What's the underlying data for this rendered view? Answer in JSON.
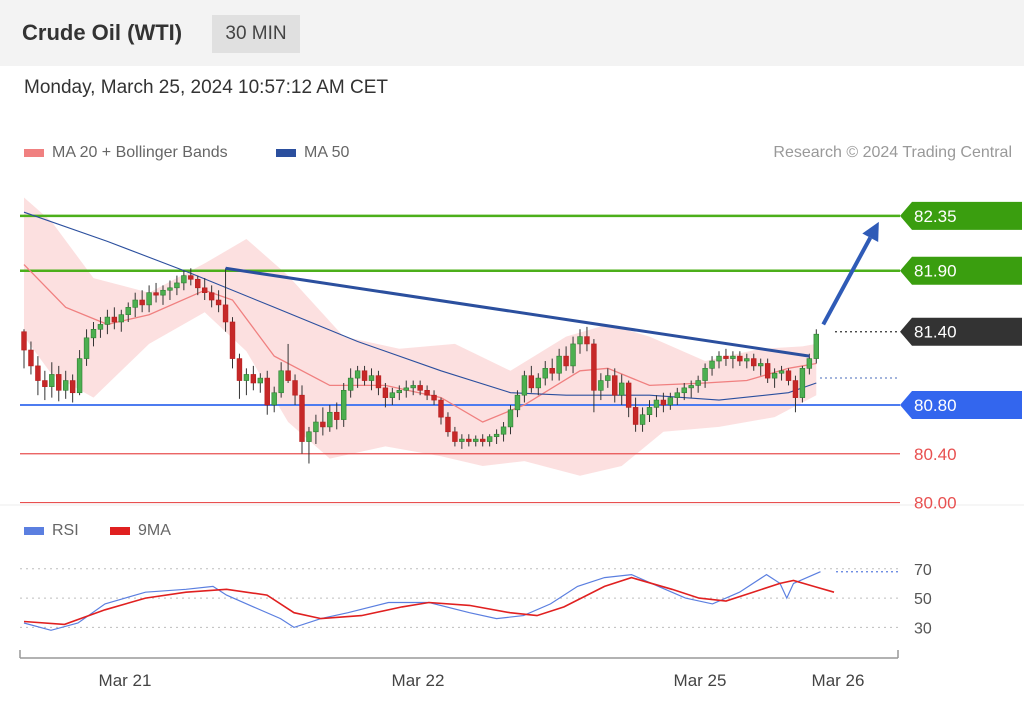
{
  "header": {
    "title": "Crude Oil (WTI)",
    "timeframe": "30 MIN"
  },
  "timestamp": "Monday, March 25, 2024 10:57:12 AM CET",
  "credit": "Research © 2024 Trading Central",
  "legend": {
    "ma20": {
      "label": "MA 20 + Bollinger Bands",
      "color": "#f08080"
    },
    "ma50": {
      "label": "MA 50",
      "color": "#2b4f9e"
    }
  },
  "rsi_legend": {
    "rsi": {
      "label": "RSI",
      "color": "#5b7fe0"
    },
    "ma9": {
      "label": "9MA",
      "color": "#e02020"
    }
  },
  "chart_data": [
    {
      "type": "candlestick",
      "ylim": [
        79.98,
        82.66
      ],
      "x_ticks": [
        "Mar 21",
        "Mar 22",
        "Mar 25",
        "Mar 26"
      ],
      "levels": [
        {
          "value": 82.35,
          "label": "82.35",
          "color": "#4caf1a",
          "style": "resistance",
          "label_fill": "#3a9e0f"
        },
        {
          "value": 81.9,
          "label": "81.90",
          "color": "#4caf1a",
          "style": "resistance",
          "label_fill": "#3a9e0f"
        },
        {
          "value": 81.4,
          "label": "81.40",
          "color": "#333333",
          "style": "current",
          "label_fill": "#333333"
        },
        {
          "value": 80.8,
          "label": "80.80",
          "color": "#4d7cf0",
          "style": "pivot",
          "label_fill": "#3366ee"
        },
        {
          "value": 80.4,
          "label": "80.40",
          "color": "#e85050",
          "style": "support",
          "label_fill": "none"
        },
        {
          "value": 80.0,
          "label": "80.00",
          "color": "#e85050",
          "style": "support",
          "label_fill": "none"
        }
      ],
      "candles": [
        [
          81.4,
          81.42,
          81.1,
          81.25
        ],
        [
          81.25,
          81.32,
          81.05,
          81.12
        ],
        [
          81.12,
          81.2,
          80.88,
          81.0
        ],
        [
          81.0,
          81.08,
          80.84,
          80.95
        ],
        [
          80.95,
          81.15,
          80.86,
          81.05
        ],
        [
          81.05,
          81.12,
          80.83,
          80.92
        ],
        [
          80.92,
          81.08,
          80.85,
          81.0
        ],
        [
          81.0,
          81.05,
          80.82,
          80.9
        ],
        [
          80.9,
          81.25,
          80.88,
          81.18
        ],
        [
          81.18,
          81.42,
          81.12,
          81.35
        ],
        [
          81.35,
          81.48,
          81.28,
          81.42
        ],
        [
          81.42,
          81.52,
          81.35,
          81.46
        ],
        [
          81.46,
          81.58,
          81.38,
          81.52
        ],
        [
          81.52,
          81.6,
          81.42,
          81.48
        ],
        [
          81.48,
          81.58,
          81.4,
          81.54
        ],
        [
          81.54,
          81.64,
          81.48,
          81.6
        ],
        [
          81.6,
          81.72,
          81.52,
          81.66
        ],
        [
          81.66,
          81.74,
          81.56,
          81.62
        ],
        [
          81.62,
          81.78,
          81.56,
          81.72
        ],
        [
          81.72,
          81.8,
          81.64,
          81.7
        ],
        [
          81.7,
          81.78,
          81.62,
          81.74
        ],
        [
          81.74,
          81.82,
          81.66,
          81.76
        ],
        [
          81.76,
          81.86,
          81.7,
          81.8
        ],
        [
          81.8,
          81.9,
          81.74,
          81.86
        ],
        [
          81.86,
          81.92,
          81.78,
          81.83
        ],
        [
          81.83,
          81.86,
          81.7,
          81.76
        ],
        [
          81.76,
          81.84,
          81.66,
          81.72
        ],
        [
          81.72,
          81.78,
          81.6,
          81.66
        ],
        [
          81.66,
          81.74,
          81.56,
          81.62
        ],
        [
          81.62,
          81.92,
          81.4,
          81.48
        ],
        [
          81.48,
          81.52,
          81.1,
          81.18
        ],
        [
          81.18,
          81.22,
          80.85,
          81.0
        ],
        [
          81.0,
          81.1,
          80.88,
          81.05
        ],
        [
          81.05,
          81.12,
          80.92,
          80.98
        ],
        [
          80.98,
          81.06,
          80.9,
          81.02
        ],
        [
          81.02,
          81.08,
          80.72,
          80.8
        ],
        [
          80.8,
          80.95,
          80.74,
          80.9
        ],
        [
          80.9,
          81.15,
          80.86,
          81.08
        ],
        [
          81.08,
          81.3,
          80.98,
          81.0
        ],
        [
          81.0,
          81.05,
          80.8,
          80.88
        ],
        [
          80.88,
          80.96,
          80.4,
          80.5
        ],
        [
          80.5,
          80.62,
          80.32,
          80.58
        ],
        [
          80.58,
          80.72,
          80.48,
          80.66
        ],
        [
          80.66,
          80.78,
          80.55,
          80.62
        ],
        [
          80.62,
          80.8,
          80.58,
          80.74
        ],
        [
          80.74,
          80.82,
          80.6,
          80.68
        ],
        [
          80.68,
          80.98,
          80.62,
          80.92
        ],
        [
          80.92,
          81.1,
          80.86,
          81.02
        ],
        [
          81.02,
          81.12,
          80.94,
          81.08
        ],
        [
          81.08,
          81.12,
          80.96,
          81.0
        ],
        [
          81.0,
          81.1,
          80.92,
          81.04
        ],
        [
          81.04,
          81.08,
          80.88,
          80.94
        ],
        [
          80.94,
          80.98,
          80.78,
          80.86
        ],
        [
          80.86,
          80.94,
          80.8,
          80.9
        ],
        [
          80.9,
          80.96,
          80.84,
          80.92
        ],
        [
          80.92,
          81.0,
          80.86,
          80.94
        ],
        [
          80.94,
          81.0,
          80.88,
          80.96
        ],
        [
          80.96,
          81.0,
          80.88,
          80.92
        ],
        [
          80.92,
          80.96,
          80.84,
          80.88
        ],
        [
          80.88,
          80.92,
          80.8,
          80.84
        ],
        [
          80.84,
          80.86,
          80.64,
          80.7
        ],
        [
          80.7,
          80.74,
          80.54,
          80.58
        ],
        [
          80.58,
          80.62,
          80.46,
          80.5
        ],
        [
          80.5,
          80.56,
          80.44,
          80.52
        ],
        [
          80.52,
          80.56,
          80.46,
          80.5
        ],
        [
          80.5,
          80.55,
          80.46,
          80.52
        ],
        [
          80.52,
          80.56,
          80.46,
          80.5
        ],
        [
          80.5,
          80.56,
          80.46,
          80.54
        ],
        [
          80.54,
          80.6,
          80.48,
          80.56
        ],
        [
          80.56,
          80.66,
          80.5,
          80.62
        ],
        [
          80.62,
          80.8,
          80.56,
          80.76
        ],
        [
          80.76,
          80.92,
          80.7,
          80.88
        ],
        [
          80.88,
          81.08,
          80.82,
          81.04
        ],
        [
          81.04,
          81.12,
          80.9,
          80.94
        ],
        [
          80.94,
          81.06,
          80.88,
          81.02
        ],
        [
          81.02,
          81.16,
          80.96,
          81.1
        ],
        [
          81.1,
          81.18,
          81.0,
          81.06
        ],
        [
          81.06,
          81.26,
          81.0,
          81.2
        ],
        [
          81.2,
          81.28,
          81.08,
          81.12
        ],
        [
          81.12,
          81.36,
          81.06,
          81.3
        ],
        [
          81.3,
          81.42,
          81.22,
          81.36
        ],
        [
          81.36,
          81.44,
          81.24,
          81.3
        ],
        [
          81.3,
          81.34,
          80.74,
          80.92
        ],
        [
          80.92,
          81.06,
          80.84,
          81.0
        ],
        [
          81.0,
          81.1,
          80.94,
          81.04
        ],
        [
          81.04,
          81.1,
          80.82,
          80.88
        ],
        [
          80.88,
          81.05,
          80.8,
          80.98
        ],
        [
          80.98,
          81.0,
          80.7,
          80.78
        ],
        [
          80.78,
          80.86,
          80.58,
          80.64
        ],
        [
          80.64,
          80.78,
          80.58,
          80.72
        ],
        [
          80.72,
          80.84,
          80.66,
          80.78
        ],
        [
          80.78,
          80.88,
          80.7,
          80.84
        ],
        [
          80.84,
          80.9,
          80.74,
          80.8
        ],
        [
          80.8,
          80.9,
          80.76,
          80.86
        ],
        [
          80.86,
          80.94,
          80.8,
          80.9
        ],
        [
          80.9,
          80.98,
          80.84,
          80.94
        ],
        [
          80.94,
          81.0,
          80.86,
          80.96
        ],
        [
          80.96,
          81.04,
          80.9,
          81.0
        ],
        [
          81.0,
          81.14,
          80.94,
          81.1
        ],
        [
          81.1,
          81.2,
          81.04,
          81.16
        ],
        [
          81.16,
          81.24,
          81.1,
          81.2
        ],
        [
          81.2,
          81.26,
          81.12,
          81.18
        ],
        [
          81.18,
          81.24,
          81.1,
          81.2
        ],
        [
          81.2,
          81.24,
          81.12,
          81.16
        ],
        [
          81.16,
          81.22,
          81.1,
          81.18
        ],
        [
          81.18,
          81.22,
          81.08,
          81.12
        ],
        [
          81.12,
          81.18,
          81.04,
          81.14
        ],
        [
          81.14,
          81.18,
          80.98,
          81.02
        ],
        [
          81.02,
          81.1,
          80.94,
          81.06
        ],
        [
          81.06,
          81.12,
          81.0,
          81.08
        ],
        [
          81.08,
          81.1,
          80.96,
          81.0
        ],
        [
          81.0,
          81.04,
          80.74,
          80.86
        ],
        [
          80.86,
          81.12,
          80.82,
          81.1
        ],
        [
          81.1,
          81.22,
          81.05,
          81.18
        ],
        [
          81.18,
          81.42,
          81.14,
          81.38
        ]
      ],
      "ma50": [
        [
          0,
          82.38
        ],
        [
          12,
          82.14
        ],
        [
          24,
          81.88
        ],
        [
          36,
          81.6
        ],
        [
          48,
          81.32
        ],
        [
          60,
          81.08
        ],
        [
          70,
          80.9
        ],
        [
          78,
          80.88
        ],
        [
          90,
          80.88
        ],
        [
          100,
          80.84
        ],
        [
          110,
          80.9
        ],
        [
          114,
          80.98
        ]
      ],
      "ma20": [
        [
          0,
          81.95
        ],
        [
          6,
          81.6
        ],
        [
          12,
          81.46
        ],
        [
          18,
          81.54
        ],
        [
          26,
          81.74
        ],
        [
          30,
          81.66
        ],
        [
          36,
          81.2
        ],
        [
          44,
          80.96
        ],
        [
          52,
          80.96
        ],
        [
          60,
          80.86
        ],
        [
          66,
          80.66
        ],
        [
          72,
          80.8
        ],
        [
          80,
          81.08
        ],
        [
          84,
          81.1
        ],
        [
          90,
          80.96
        ],
        [
          98,
          80.98
        ],
        [
          104,
          81.0
        ],
        [
          110,
          81.1
        ],
        [
          114,
          81.14
        ]
      ],
      "bb_upper": [
        [
          0,
          82.5
        ],
        [
          4,
          82.3
        ],
        [
          10,
          81.84
        ],
        [
          18,
          81.72
        ],
        [
          26,
          81.96
        ],
        [
          32,
          82.16
        ],
        [
          38,
          81.86
        ],
        [
          46,
          81.36
        ],
        [
          54,
          81.26
        ],
        [
          62,
          81.3
        ],
        [
          70,
          81.08
        ],
        [
          78,
          81.36
        ],
        [
          84,
          81.46
        ],
        [
          90,
          81.36
        ],
        [
          98,
          81.16
        ],
        [
          106,
          81.26
        ],
        [
          112,
          81.28
        ],
        [
          114,
          81.3
        ]
      ],
      "bb_lower": [
        [
          0,
          81.36
        ],
        [
          4,
          81.05
        ],
        [
          10,
          80.86
        ],
        [
          18,
          81.3
        ],
        [
          26,
          81.56
        ],
        [
          32,
          81.24
        ],
        [
          38,
          80.66
        ],
        [
          44,
          80.36
        ],
        [
          52,
          80.46
        ],
        [
          60,
          80.38
        ],
        [
          66,
          80.3
        ],
        [
          72,
          80.34
        ],
        [
          80,
          80.22
        ],
        [
          86,
          80.3
        ],
        [
          92,
          80.58
        ],
        [
          100,
          80.62
        ],
        [
          108,
          80.7
        ],
        [
          114,
          80.88
        ]
      ],
      "trendline": [
        [
          29,
          81.92
        ],
        [
          113,
          81.2
        ]
      ],
      "forecast_arrow": [
        [
          115,
          81.46
        ],
        [
          123,
          82.3
        ]
      ]
    },
    {
      "type": "line",
      "title": "RSI",
      "ylim": [
        20,
        76
      ],
      "y_ticks": [
        30,
        50,
        70
      ],
      "series": [
        {
          "name": "RSI",
          "color": "#5b7fe0",
          "points": [
            [
              0,
              33
            ],
            [
              4,
              28
            ],
            [
              8,
              33
            ],
            [
              12,
              46
            ],
            [
              18,
              54
            ],
            [
              24,
              56
            ],
            [
              28,
              58
            ],
            [
              30,
              52
            ],
            [
              34,
              44
            ],
            [
              38,
              36
            ],
            [
              40,
              30
            ],
            [
              44,
              36
            ],
            [
              48,
              40
            ],
            [
              54,
              47
            ],
            [
              60,
              47
            ],
            [
              66,
              40
            ],
            [
              70,
              36
            ],
            [
              74,
              38
            ],
            [
              78,
              46
            ],
            [
              82,
              58
            ],
            [
              86,
              64
            ],
            [
              90,
              66
            ],
            [
              94,
              58
            ],
            [
              98,
              50
            ],
            [
              102,
              46
            ],
            [
              106,
              54
            ],
            [
              110,
              66
            ],
            [
              112,
              60
            ],
            [
              113,
              50
            ],
            [
              114,
              60
            ],
            [
              116,
              64
            ],
            [
              118,
              68
            ]
          ]
        },
        {
          "name": "9MA",
          "color": "#e02020",
          "points": [
            [
              0,
              34
            ],
            [
              6,
              32
            ],
            [
              12,
              42
            ],
            [
              18,
              50
            ],
            [
              24,
              54
            ],
            [
              30,
              56
            ],
            [
              36,
              52
            ],
            [
              40,
              40
            ],
            [
              44,
              36
            ],
            [
              50,
              38
            ],
            [
              56,
              44
            ],
            [
              60,
              47
            ],
            [
              66,
              45
            ],
            [
              72,
              40
            ],
            [
              76,
              38
            ],
            [
              80,
              44
            ],
            [
              86,
              58
            ],
            [
              90,
              64
            ],
            [
              96,
              56
            ],
            [
              100,
              50
            ],
            [
              104,
              48
            ],
            [
              108,
              54
            ],
            [
              112,
              60
            ],
            [
              114,
              62
            ],
            [
              117,
              58
            ],
            [
              120,
              54
            ]
          ]
        }
      ]
    }
  ]
}
